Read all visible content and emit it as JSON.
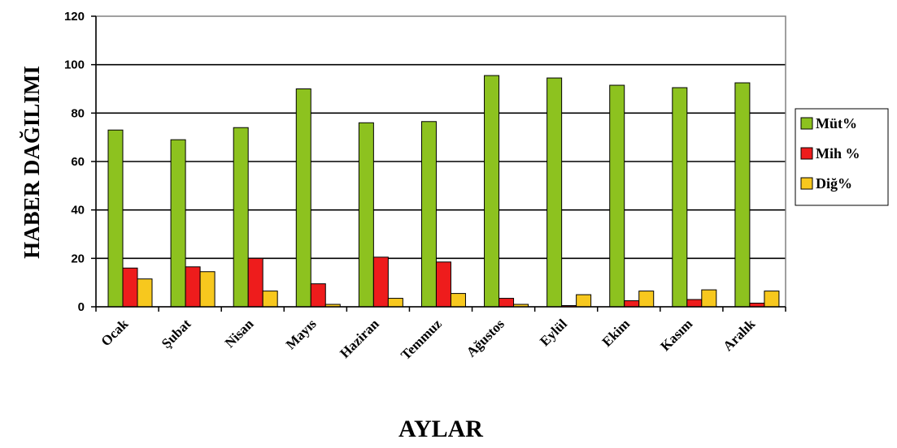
{
  "chart_data": {
    "type": "bar",
    "categories": [
      "Ocak",
      "Şubat",
      "Nisan",
      "Mayıs",
      "Haziran",
      "Temmuz",
      "Ağustos",
      "Eylül",
      "Ekim",
      "Kasım",
      "Aralık"
    ],
    "series": [
      {
        "name": "Müt%",
        "color": "#8DC21F",
        "values": [
          73,
          69,
          74,
          90,
          76,
          76.5,
          95.5,
          94.5,
          91.5,
          90.5,
          92.5
        ]
      },
      {
        "name": "Mih %",
        "color": "#EE1C1C",
        "values": [
          16,
          16.5,
          20,
          9.5,
          20.5,
          18.5,
          3.5,
          0.5,
          2.5,
          3,
          1.5
        ]
      },
      {
        "name": "Diğ%",
        "color": "#F7C81E",
        "values": [
          11.5,
          14.5,
          6.5,
          1,
          3.5,
          5.5,
          1,
          5,
          6.5,
          7,
          6.5
        ]
      }
    ],
    "xlabel": "AYLAR",
    "ylabel": "HABER DAĞILIMI",
    "ylim": [
      0,
      120
    ],
    "yticks": [
      "0",
      "20",
      "40",
      "60",
      "80",
      "100",
      "120"
    ],
    "grid": true,
    "legend_position": "right"
  }
}
